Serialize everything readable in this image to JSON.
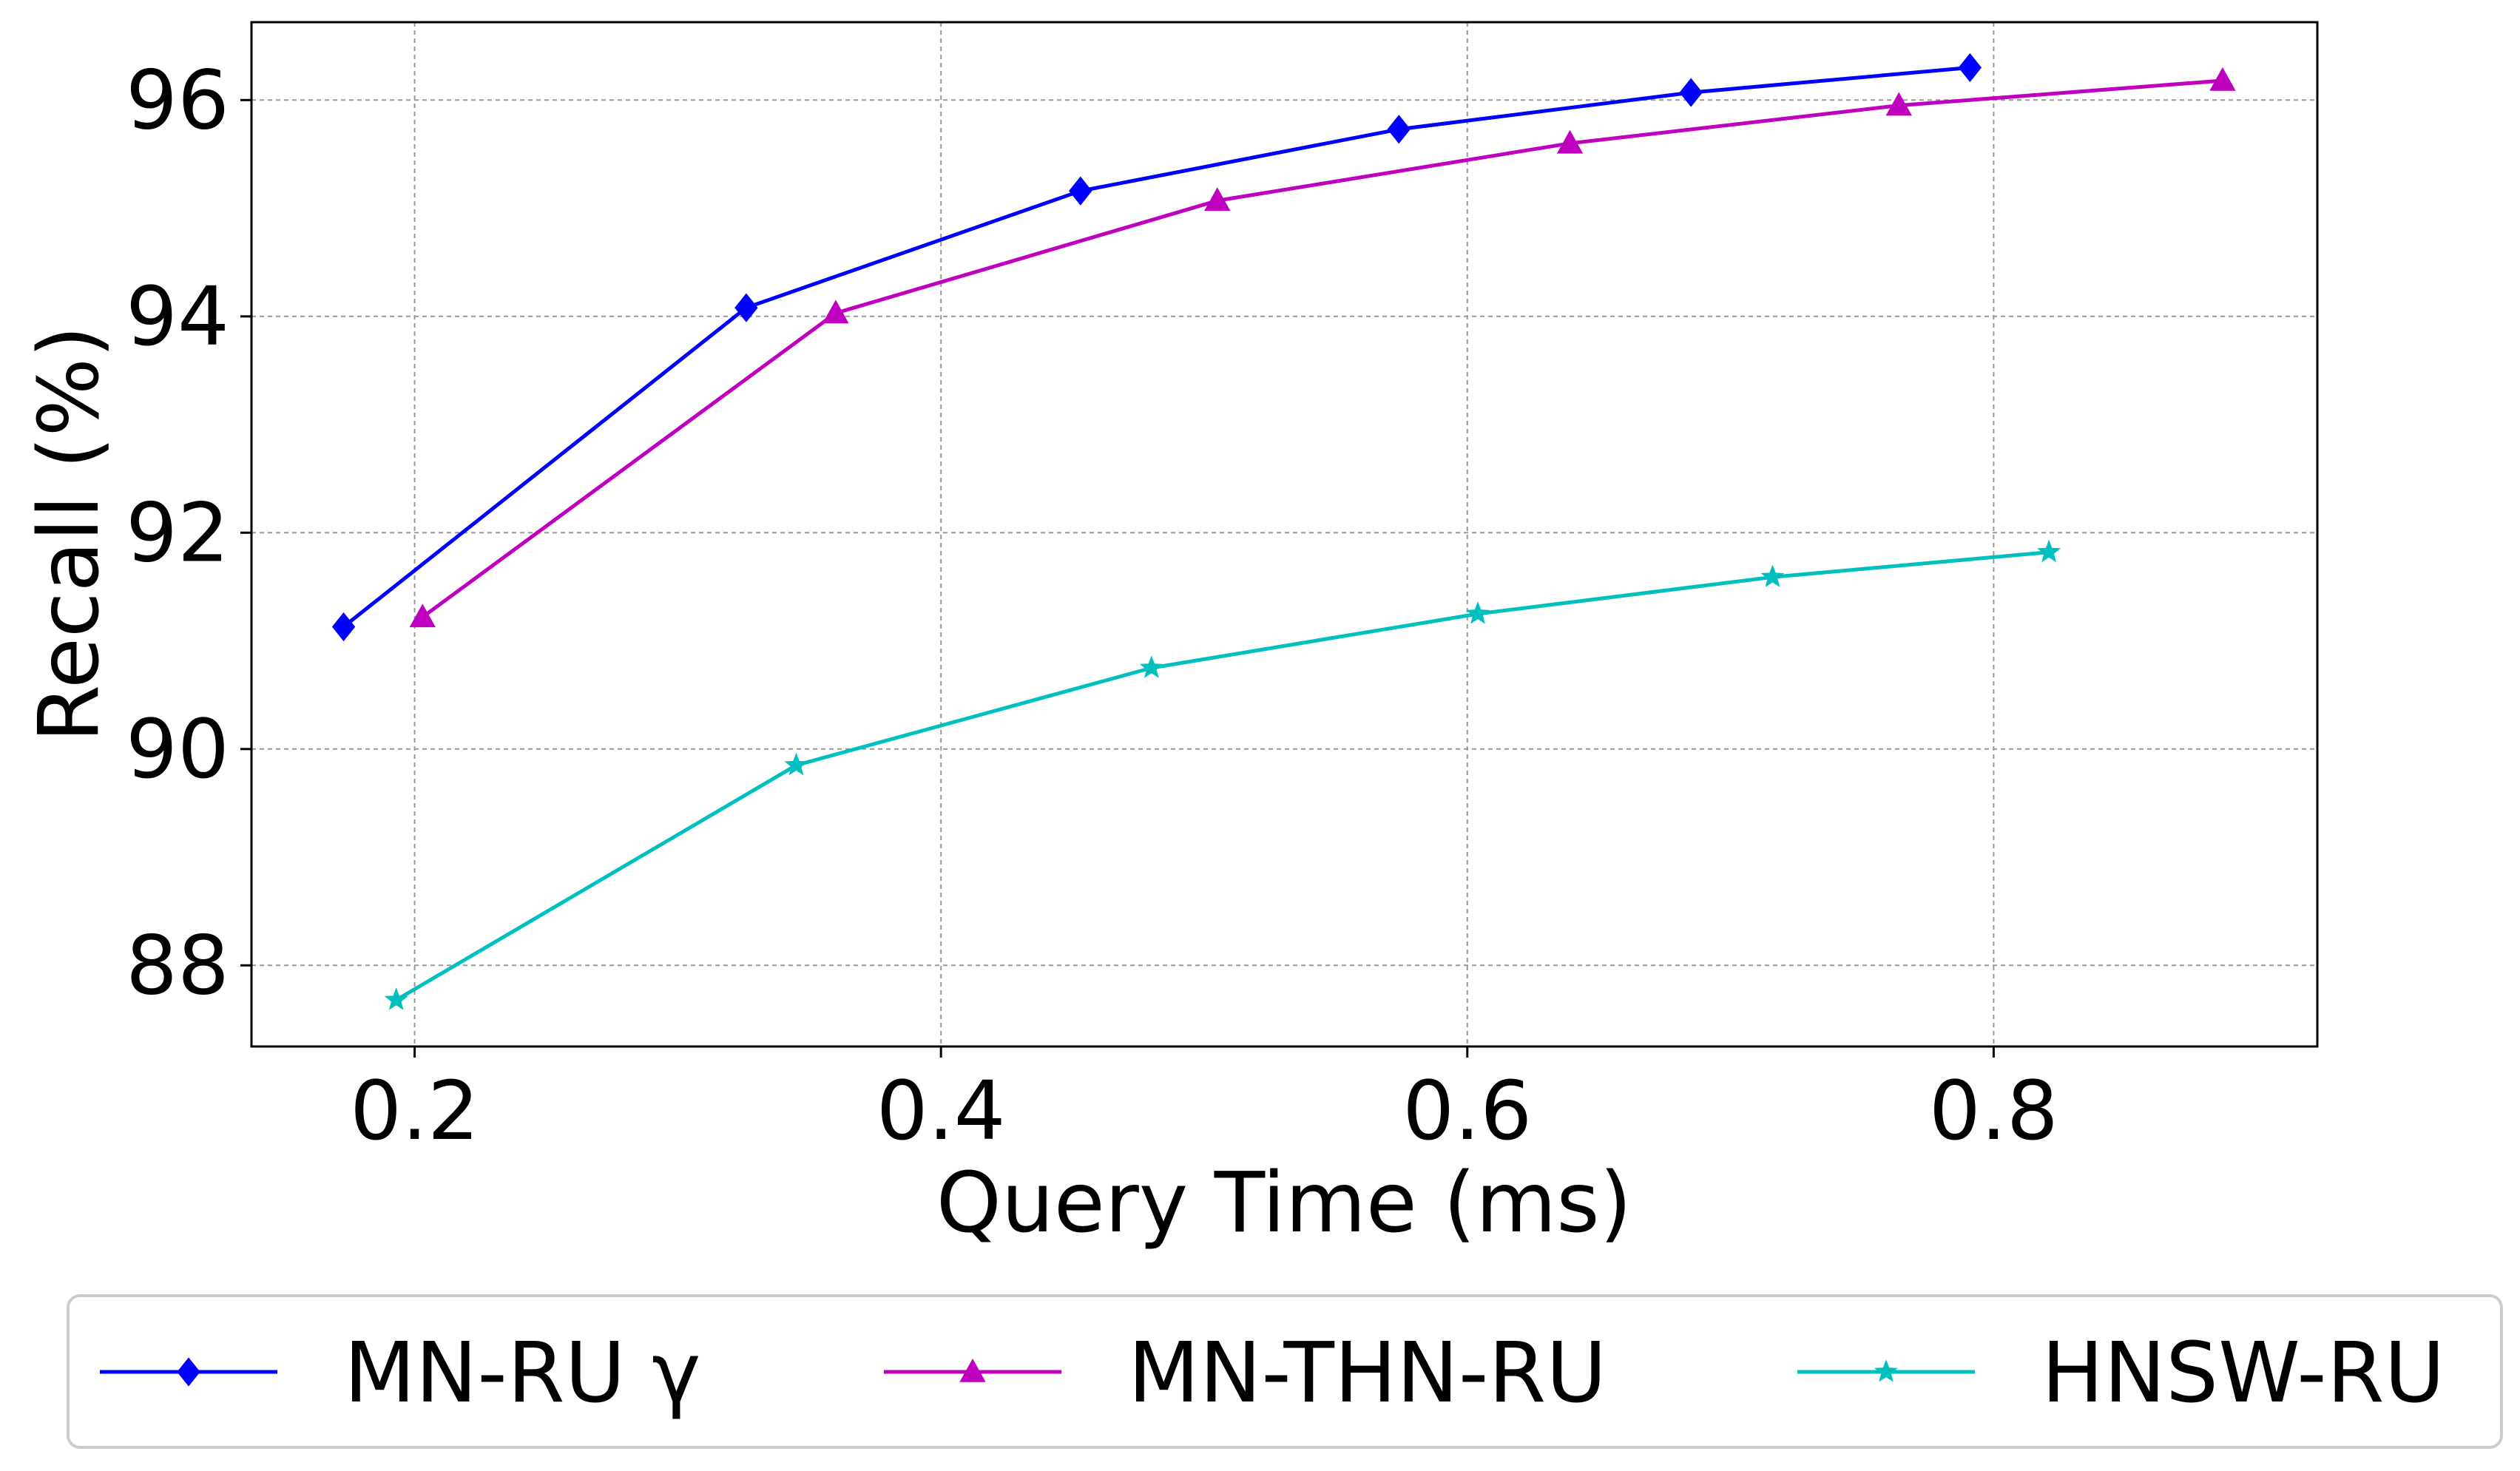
{
  "chart_data": {
    "type": "line",
    "title": "",
    "xlabel": "Query Time (ms)",
    "ylabel": "Recall (%)",
    "xlim": [
      0.138,
      0.923
    ],
    "ylim": [
      87.25,
      96.72
    ],
    "x_ticks": [
      "0.2",
      "0.4",
      "0.6",
      "0.8"
    ],
    "y_ticks": [
      "88",
      "90",
      "92",
      "94",
      "96"
    ],
    "grid": true,
    "legend_position": "bottom, below the axes",
    "series": [
      {
        "name": "MN-RU γ",
        "color": "#0000ff",
        "marker": "diamond",
        "x": [
          0.173,
          0.326,
          0.453,
          0.574,
          0.685,
          0.791
        ],
        "y": [
          91.13,
          94.08,
          95.16,
          95.73,
          96.07,
          96.3
        ]
      },
      {
        "name": "MN-THN-RU",
        "color": "#bf00bf",
        "marker": "triangle",
        "x": [
          0.203,
          0.36,
          0.505,
          0.639,
          0.764,
          0.887
        ],
        "y": [
          91.22,
          94.03,
          95.07,
          95.6,
          95.95,
          96.18
        ]
      },
      {
        "name": "HNSW-RU",
        "color": "#00bfbf",
        "marker": "star",
        "x": [
          0.193,
          0.345,
          0.48,
          0.604,
          0.716,
          0.821
        ],
        "y": [
          87.68,
          89.85,
          90.75,
          91.25,
          91.59,
          91.82
        ]
      }
    ]
  }
}
